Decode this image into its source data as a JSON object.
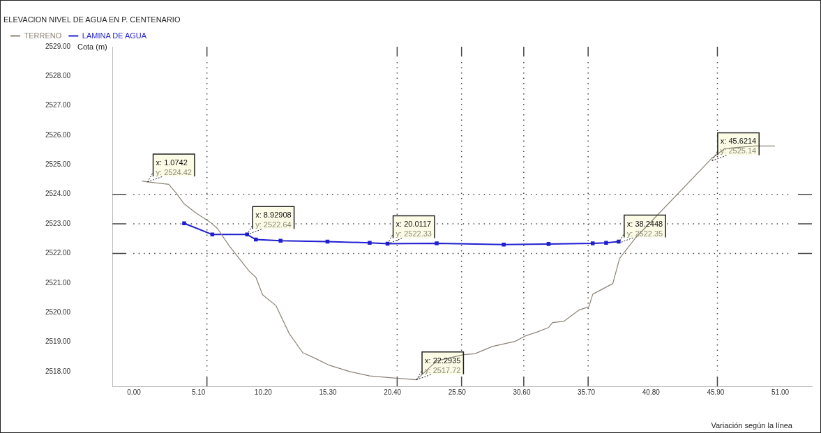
{
  "chart_data": {
    "type": "line",
    "title": "ELEVACION NIVEL DE AGUA EN P. CENTENARIO",
    "xlabel": "Variación según la línea",
    "ylabel": "Cota (m)",
    "xlim": [
      -1.7,
      53.5
    ],
    "ylim": [
      2517.5,
      2529
    ],
    "xticks": [
      {
        "value": 0,
        "label": "0.00"
      },
      {
        "value": 5.1,
        "label": "5.10"
      },
      {
        "value": 10.2,
        "label": "10.20"
      },
      {
        "value": 15.3,
        "label": "15.30"
      },
      {
        "value": 20.4,
        "label": "20.40"
      },
      {
        "value": 25.5,
        "label": "25.50"
      },
      {
        "value": 30.6,
        "label": "30.60"
      },
      {
        "value": 35.7,
        "label": "35.70"
      },
      {
        "value": 40.8,
        "label": "40.80"
      },
      {
        "value": 45.9,
        "label": "45.90"
      },
      {
        "value": 51,
        "label": "51.00"
      }
    ],
    "yticks": [
      {
        "value": 2518,
        "label": "2518.00"
      },
      {
        "value": 2519,
        "label": "2519.00"
      },
      {
        "value": 2520,
        "label": "2520.00"
      },
      {
        "value": 2521,
        "label": "2521.00"
      },
      {
        "value": 2522,
        "label": "2522.00"
      },
      {
        "value": 2523,
        "label": "2523.00"
      },
      {
        "value": 2524,
        "label": "2524.00"
      },
      {
        "value": 2525,
        "label": "2525.00"
      },
      {
        "value": 2526,
        "label": "2526.00"
      },
      {
        "value": 2527,
        "label": "2527.00"
      },
      {
        "value": 2528,
        "label": "2528.00"
      },
      {
        "value": 2529,
        "label": "2529.00"
      }
    ],
    "grid": false,
    "legend": "top left",
    "series": [
      {
        "name": "TERRENO",
        "color": "#8c8377",
        "marker": "none",
        "x": [
          0.63,
          1.0742,
          2.75,
          3.38,
          3.96,
          4.86,
          6.08,
          6.61,
          7.51,
          9.09,
          9.62,
          10.15,
          11.21,
          12.26,
          13.32,
          14.38,
          15.43,
          17.02,
          18.6,
          20.19,
          22.2935,
          23.89,
          26.0,
          26.9,
          28.28,
          30.07,
          30.92,
          31.82,
          32.72,
          33.03,
          33.93,
          35.15,
          35.89,
          36.21,
          37.79,
          38.32,
          39.59,
          45.6214,
          46.62,
          49.0,
          50.58
        ],
        "values": [
          2524.45,
          2524.42,
          2524.34,
          2524.02,
          2523.68,
          2523.38,
          2523.04,
          2522.83,
          2522.26,
          2521.4,
          2521.19,
          2520.6,
          2520.23,
          2519.28,
          2518.64,
          2518.43,
          2518.21,
          2518.0,
          2517.85,
          2517.79,
          2517.72,
          2518.36,
          2518.57,
          2518.6,
          2518.85,
          2519.02,
          2519.21,
          2519.34,
          2519.49,
          2519.66,
          2519.7,
          2520.09,
          2520.19,
          2520.62,
          2520.98,
          2521.83,
          2522.53,
          2525.23,
          2525.55,
          2525.64,
          2525.64
        ]
      },
      {
        "name": "LAMINA DE AGUA",
        "color": "#1f1fd0",
        "marker": "square",
        "x": [
          3.96,
          6.18,
          8.92908,
          9.62,
          11.57,
          15.27,
          18.6,
          20.0117,
          23.89,
          29.18,
          32.72,
          36.2,
          37.26,
          38.2448
        ],
        "values": [
          2523.02,
          2522.64,
          2522.64,
          2522.47,
          2522.43,
          2522.4,
          2522.36,
          2522.33,
          2522.34,
          2522.3,
          2522.32,
          2522.34,
          2522.36,
          2522.4
        ]
      }
    ],
    "ref_lines": [
      {
        "axis": "y",
        "value": 2524,
        "line_style": "dotted"
      },
      {
        "axis": "y",
        "value": 2523,
        "line_style": "dotted"
      },
      {
        "axis": "y",
        "value": 2522,
        "line_style": "dotted"
      },
      {
        "axis": "x",
        "value": 5.76,
        "line_style": "dotted"
      },
      {
        "axis": "x",
        "value": 20.77,
        "line_style": "dotted"
      },
      {
        "axis": "x",
        "value": 25.85,
        "line_style": "dotted"
      },
      {
        "axis": "x",
        "value": 30.76,
        "line_style": "dotted"
      },
      {
        "axis": "x",
        "value": 35.84,
        "line_style": "dotted"
      },
      {
        "axis": "x",
        "value": 46.04,
        "line_style": "dotted"
      }
    ],
    "annotations": [
      {
        "text": "x: 1.0742\ny: 2524.42",
        "x": 1.0742,
        "y": 2524.42
      },
      {
        "text": "x: 8.92908\ny: 2522.64",
        "x": 8.92908,
        "y": 2522.64
      },
      {
        "text": "x: 20.0117\ny: 2522.33",
        "x": 20.0117,
        "y": 2522.33
      },
      {
        "text": "x: 22.2935\ny: 2517.72",
        "x": 22.2935,
        "y": 2517.72
      },
      {
        "text": "x: 38.2448\ny: 2522.35",
        "x": 38.2448,
        "y": 2522.35
      },
      {
        "text": "x: 45.6214\ny: 2525.14",
        "x": 45.6214,
        "y": 2525.14
      }
    ]
  }
}
